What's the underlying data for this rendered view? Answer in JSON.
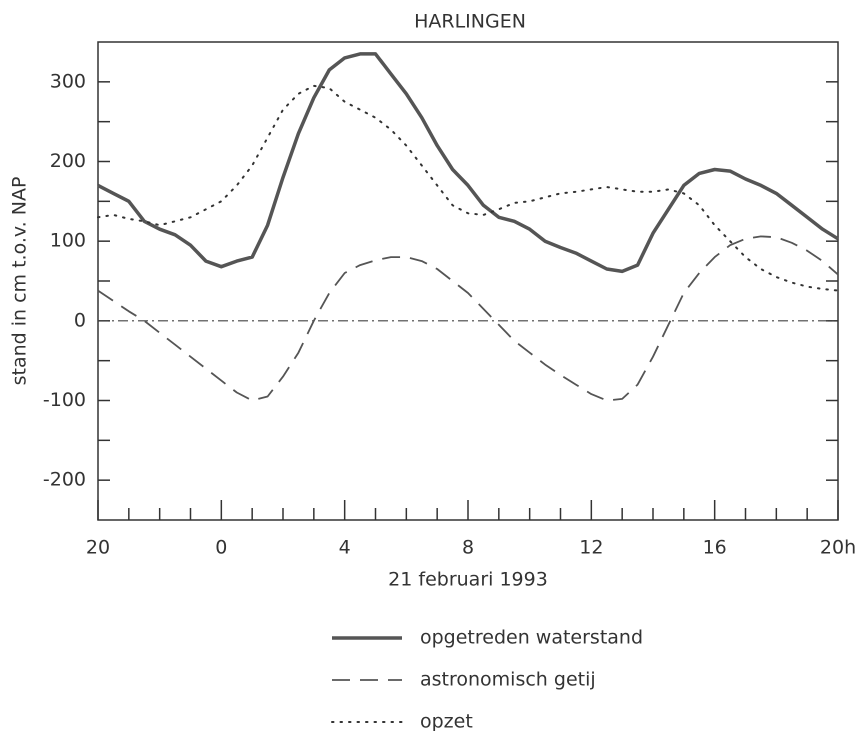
{
  "chart_data": {
    "type": "line",
    "title": "HARLINGEN",
    "x_label": "21 februari 1993",
    "y_label": "stand in cm t.o.v. NAP",
    "x": [
      -4,
      -3.5,
      -3,
      -2.5,
      -2,
      -1.5,
      -1,
      -0.5,
      0,
      0.5,
      1,
      1.5,
      2,
      2.5,
      3,
      3.5,
      4,
      4.5,
      5,
      5.5,
      6,
      6.5,
      7,
      7.5,
      8,
      8.5,
      9,
      9.5,
      10,
      10.5,
      11,
      11.5,
      12,
      12.5,
      13,
      13.5,
      14,
      14.5,
      15,
      15.5,
      16,
      16.5,
      17,
      17.5,
      18,
      18.5,
      19,
      19.5,
      20
    ],
    "series": [
      {
        "name": "opgetreden waterstand",
        "color": "#555555",
        "dash": "solid",
        "values": [
          170,
          160,
          150,
          125,
          115,
          108,
          95,
          75,
          68,
          75,
          80,
          120,
          180,
          235,
          280,
          315,
          330,
          335,
          335,
          310,
          285,
          255,
          220,
          190,
          170,
          145,
          130,
          125,
          115,
          100,
          92,
          85,
          75,
          65,
          62,
          70,
          110,
          140,
          170,
          185,
          190,
          188,
          178,
          170,
          160,
          145,
          130,
          115,
          103
        ]
      },
      {
        "name": "astronomisch getij",
        "color": "#555555",
        "dash": "dashed",
        "values": [
          38,
          25,
          12,
          0,
          -15,
          -30,
          -45,
          -60,
          -75,
          -90,
          -100,
          -95,
          -70,
          -40,
          0,
          35,
          60,
          70,
          76,
          80,
          80,
          75,
          65,
          50,
          35,
          15,
          -5,
          -25,
          -40,
          -55,
          -68,
          -80,
          -92,
          -100,
          -98,
          -80,
          -45,
          -5,
          35,
          60,
          80,
          95,
          103,
          106,
          105,
          98,
          88,
          75,
          58
        ]
      },
      {
        "name": "opzet",
        "color": "#333333",
        "dash": "dotted",
        "values": [
          130,
          133,
          128,
          125,
          120,
          125,
          130,
          140,
          150,
          170,
          195,
          230,
          265,
          285,
          295,
          292,
          275,
          265,
          255,
          240,
          220,
          195,
          170,
          145,
          135,
          133,
          140,
          148,
          150,
          155,
          160,
          162,
          165,
          168,
          165,
          162,
          162,
          165,
          160,
          145,
          120,
          100,
          80,
          65,
          55,
          48,
          43,
          40,
          38
        ]
      }
    ],
    "xlim": [
      -4,
      20
    ],
    "xticks": [
      {
        "value": -4,
        "label": "20"
      },
      0,
      4,
      8,
      12,
      16,
      {
        "value": 20,
        "label": "20h"
      }
    ],
    "xminor": [
      -3,
      -2,
      -1,
      1,
      2,
      3,
      5,
      6,
      7,
      9,
      10,
      11,
      13,
      14,
      15,
      17,
      18,
      19
    ],
    "ylim": [
      -250,
      350
    ],
    "yticks": [
      -200,
      -100,
      0,
      100,
      200,
      300
    ],
    "yminor": [
      -150,
      -50,
      50,
      150,
      250
    ]
  }
}
